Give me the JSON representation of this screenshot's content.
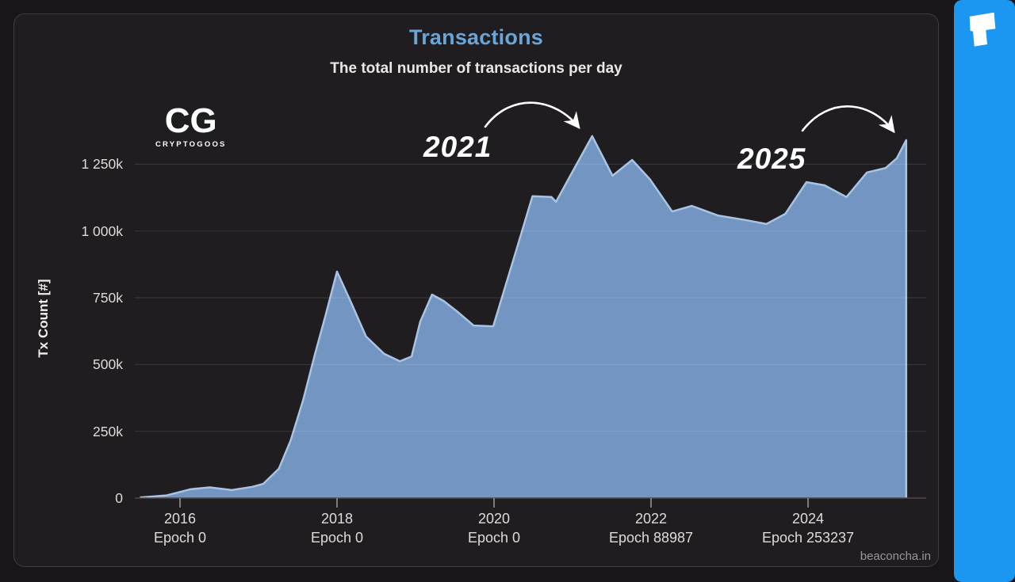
{
  "header": {
    "title": "Transactions",
    "subtitle": "The total number of transactions per day"
  },
  "logo": {
    "cg": "CG",
    "caption": "CRYPTOGOOS"
  },
  "annotations": [
    {
      "label": "2021"
    },
    {
      "label": "2025"
    }
  ],
  "footer": {
    "watermark": "beaconcha.in"
  },
  "sidebar": {
    "color": "#1b97f2",
    "icon": "t-block-icon"
  },
  "colors": {
    "page_bg": "#18161a",
    "card_bg": "#1f1d20",
    "card_border": "#3e3c40",
    "area_fill": "#7295c2",
    "area_stroke": "#a9c3e2",
    "grid": "rgba(255,255,255,0.10)",
    "axis_line": "#4c4a4e",
    "tick_mark": "#9a9a9a",
    "title_blue": "#6aa5d8",
    "text_light": "#eae7e4",
    "watermark_gray": "#99979b",
    "arrow_white": "#ffffff"
  },
  "chart_data": {
    "type": "area",
    "title": "Transactions",
    "subtitle": "The total number of transactions per day",
    "xlabel": "",
    "ylabel": "Tx Count [#]",
    "x_unit": "year",
    "y_unit": "transactions per day, thousands",
    "xlim": [
      2015.4,
      2025.5
    ],
    "ylim": [
      0,
      1400
    ],
    "grid": "horizontal",
    "legend": false,
    "y_ticks": [
      {
        "label": "1 250k",
        "value": 1250
      },
      {
        "label": "1 000k",
        "value": 1000
      },
      {
        "label": "750k",
        "value": 750
      },
      {
        "label": "500k",
        "value": 500
      },
      {
        "label": "250k",
        "value": 250
      },
      {
        "label": "0",
        "value": 0
      }
    ],
    "x_ticks": [
      {
        "year": 2016,
        "line1": "2016",
        "line2": "Epoch 0"
      },
      {
        "year": 2018,
        "line1": "2018",
        "line2": "Epoch 0"
      },
      {
        "year": 2020,
        "line1": "2020",
        "line2": "Epoch 0"
      },
      {
        "year": 2022,
        "line1": "2022",
        "line2": "Epoch 88987"
      },
      {
        "year": 2024,
        "line1": "2024",
        "line2": "Epoch 253237"
      }
    ],
    "series": [
      {
        "name": "Tx Count",
        "unit": "k per day",
        "points": [
          [
            2015.49,
            2
          ],
          [
            2015.83,
            10
          ],
          [
            2016.13,
            33
          ],
          [
            2016.38,
            40
          ],
          [
            2016.66,
            30
          ],
          [
            2016.92,
            42
          ],
          [
            2017.06,
            53
          ],
          [
            2017.26,
            110
          ],
          [
            2017.41,
            216
          ],
          [
            2017.57,
            368
          ],
          [
            2017.72,
            540
          ],
          [
            2017.85,
            679
          ],
          [
            2018.0,
            848
          ],
          [
            2018.18,
            732
          ],
          [
            2018.37,
            605
          ],
          [
            2018.6,
            540
          ],
          [
            2018.8,
            512
          ],
          [
            2018.95,
            530
          ],
          [
            2019.06,
            660
          ],
          [
            2019.21,
            762
          ],
          [
            2019.36,
            738
          ],
          [
            2019.55,
            694
          ],
          [
            2019.74,
            646
          ],
          [
            2019.99,
            643
          ],
          [
            2020.25,
            896
          ],
          [
            2020.49,
            1130
          ],
          [
            2020.73,
            1127
          ],
          [
            2020.79,
            1109
          ],
          [
            2021.02,
            1233
          ],
          [
            2021.25,
            1355
          ],
          [
            2021.51,
            1207
          ],
          [
            2021.76,
            1266
          ],
          [
            2021.99,
            1192
          ],
          [
            2022.27,
            1073
          ],
          [
            2022.52,
            1094
          ],
          [
            2022.85,
            1058
          ],
          [
            2023.2,
            1041
          ],
          [
            2023.47,
            1026
          ],
          [
            2023.71,
            1064
          ],
          [
            2023.98,
            1183
          ],
          [
            2024.21,
            1171
          ],
          [
            2024.49,
            1127
          ],
          [
            2024.75,
            1219
          ],
          [
            2024.99,
            1236
          ],
          [
            2025.13,
            1272
          ],
          [
            2025.25,
            1340
          ]
        ]
      }
    ],
    "annotated_peaks": [
      {
        "label": "2021",
        "year": 2021.25,
        "value_k": 1355
      },
      {
        "label": "2025",
        "year": 2025.25,
        "value_k": 1340
      }
    ]
  }
}
